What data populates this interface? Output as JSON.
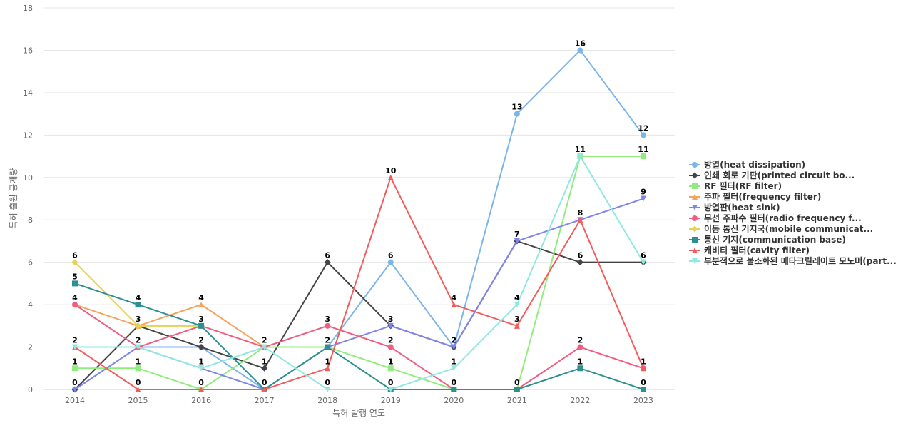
{
  "chart_data": {
    "type": "line",
    "xlabel": "특허 발행 연도",
    "ylabel": "특허 출원 공개량",
    "ylim": [
      0,
      18
    ],
    "yticks": [
      0,
      2,
      4,
      6,
      8,
      10,
      12,
      14,
      16,
      18
    ],
    "grid": true,
    "legend_position": "right",
    "categories": [
      "2014",
      "2015",
      "2016",
      "2017",
      "2018",
      "2019",
      "2020",
      "2021",
      "2022",
      "2023"
    ],
    "series": [
      {
        "name": "방열(heat dissipation)",
        "color": "#7cb5ec",
        "marker": "circle",
        "values": [
          0,
          2,
          2,
          0,
          2,
          6,
          2,
          13,
          16,
          12
        ]
      },
      {
        "name": "인쇄 회로 기판(printed circuit bo...",
        "color": "#434348",
        "marker": "diamond",
        "values": [
          0,
          3,
          2,
          1,
          6,
          3,
          2,
          7,
          6,
          6
        ]
      },
      {
        "name": "RF 필터(RF filter)",
        "color": "#90ed7d",
        "marker": "square",
        "values": [
          1,
          1,
          0,
          2,
          2,
          1,
          0,
          0,
          11,
          11
        ]
      },
      {
        "name": "주파 필터(frequency filter)",
        "color": "#f7a35c",
        "marker": "triangle",
        "values": [
          4,
          3,
          4,
          2,
          null,
          null,
          null,
          null,
          null,
          null
        ]
      },
      {
        "name": "방열판(heat sink)",
        "color": "#8085e9",
        "marker": "triangle-down",
        "values": [
          0,
          2,
          1,
          0,
          2,
          3,
          2,
          7,
          8,
          9
        ]
      },
      {
        "name": "무선 주파수 필터(radio frequency f...",
        "color": "#f15c80",
        "marker": "circle",
        "values": [
          4,
          2,
          3,
          2,
          3,
          2,
          0,
          0,
          2,
          1
        ]
      },
      {
        "name": "이동 통신 기지국(mobile communicat...",
        "color": "#e4d354",
        "marker": "diamond",
        "values": [
          6,
          3,
          3,
          null,
          null,
          null,
          null,
          null,
          null,
          null
        ]
      },
      {
        "name": "통신 기지(communication base)",
        "color": "#2b908f",
        "marker": "square",
        "values": [
          5,
          4,
          3,
          0,
          2,
          0,
          0,
          0,
          1,
          0
        ]
      },
      {
        "name": "캐비티 필터(cavity filter)",
        "color": "#f45b5b",
        "marker": "triangle",
        "values": [
          2,
          0,
          0,
          0,
          1,
          10,
          4,
          3,
          8,
          1
        ]
      },
      {
        "name": "부분적으로 불소화된 메타크릴레이트 모노머(part...",
        "color": "#91e8e1",
        "marker": "triangle-down",
        "values": [
          2,
          2,
          1,
          2,
          0,
          0,
          1,
          4,
          11,
          6
        ]
      }
    ],
    "data_labels": [
      {
        "x": "2014",
        "y": 6,
        "text": "6"
      },
      {
        "x": "2014",
        "y": 5,
        "text": "5"
      },
      {
        "x": "2014",
        "y": 4,
        "text": "4"
      },
      {
        "x": "2014",
        "y": 2,
        "text": "2"
      },
      {
        "x": "2014",
        "y": 1,
        "text": "1"
      },
      {
        "x": "2014",
        "y": 0,
        "text": "0"
      },
      {
        "x": "2015",
        "y": 4,
        "text": "4"
      },
      {
        "x": "2015",
        "y": 3,
        "text": "3"
      },
      {
        "x": "2015",
        "y": 2,
        "text": "2"
      },
      {
        "x": "2015",
        "y": 1,
        "text": "1"
      },
      {
        "x": "2015",
        "y": 0,
        "text": "0"
      },
      {
        "x": "2016",
        "y": 4,
        "text": "4"
      },
      {
        "x": "2016",
        "y": 3,
        "text": "3"
      },
      {
        "x": "2016",
        "y": 2,
        "text": "2"
      },
      {
        "x": "2016",
        "y": 1,
        "text": "1"
      },
      {
        "x": "2016",
        "y": 0,
        "text": "0"
      },
      {
        "x": "2017",
        "y": 2,
        "text": "2"
      },
      {
        "x": "2017",
        "y": 1,
        "text": "1"
      },
      {
        "x": "2017",
        "y": 0,
        "text": "0"
      },
      {
        "x": "2018",
        "y": 6,
        "text": "6"
      },
      {
        "x": "2018",
        "y": 3,
        "text": "3"
      },
      {
        "x": "2018",
        "y": 2,
        "text": "2"
      },
      {
        "x": "2018",
        "y": 1,
        "text": "1"
      },
      {
        "x": "2018",
        "y": 0,
        "text": "0"
      },
      {
        "x": "2019",
        "y": 10,
        "text": "10"
      },
      {
        "x": "2019",
        "y": 6,
        "text": "6"
      },
      {
        "x": "2019",
        "y": 3,
        "text": "3"
      },
      {
        "x": "2019",
        "y": 2,
        "text": "2"
      },
      {
        "x": "2019",
        "y": 1,
        "text": "1"
      },
      {
        "x": "2019",
        "y": 0,
        "text": "0"
      },
      {
        "x": "2020",
        "y": 4,
        "text": "4"
      },
      {
        "x": "2020",
        "y": 2,
        "text": "2"
      },
      {
        "x": "2020",
        "y": 1,
        "text": "1"
      },
      {
        "x": "2020",
        "y": 0,
        "text": "0"
      },
      {
        "x": "2021",
        "y": 13,
        "text": "13"
      },
      {
        "x": "2021",
        "y": 7,
        "text": "7"
      },
      {
        "x": "2021",
        "y": 4,
        "text": "4"
      },
      {
        "x": "2021",
        "y": 3,
        "text": "3"
      },
      {
        "x": "2021",
        "y": 0,
        "text": "0"
      },
      {
        "x": "2022",
        "y": 16,
        "text": "16"
      },
      {
        "x": "2022",
        "y": 11,
        "text": "11"
      },
      {
        "x": "2022",
        "y": 8,
        "text": "8"
      },
      {
        "x": "2022",
        "y": 6,
        "text": "6"
      },
      {
        "x": "2022",
        "y": 2,
        "text": "2"
      },
      {
        "x": "2022",
        "y": 1,
        "text": "1"
      },
      {
        "x": "2023",
        "y": 12,
        "text": "12"
      },
      {
        "x": "2023",
        "y": 11,
        "text": "11"
      },
      {
        "x": "2023",
        "y": 9,
        "text": "9"
      },
      {
        "x": "2023",
        "y": 6,
        "text": "6"
      },
      {
        "x": "2023",
        "y": 1,
        "text": "1"
      },
      {
        "x": "2023",
        "y": 0,
        "text": "0"
      }
    ]
  }
}
